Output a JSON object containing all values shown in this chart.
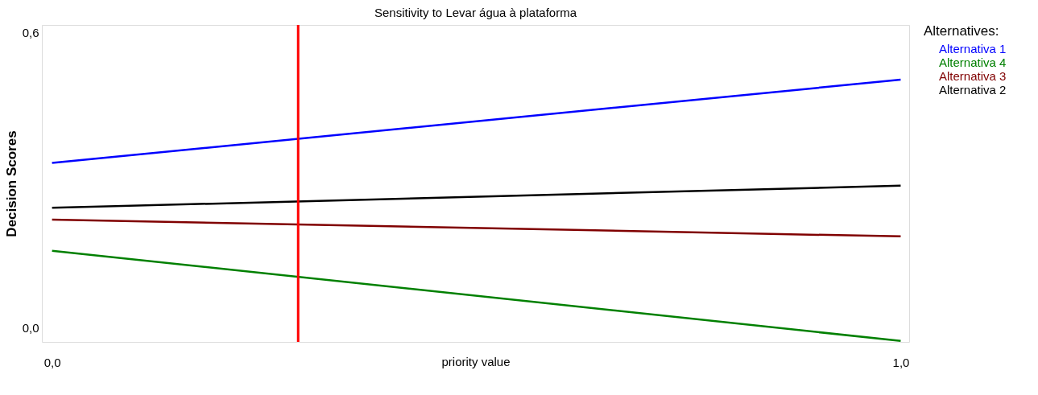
{
  "chart_data": {
    "type": "line",
    "title": "Sensitivity to Levar água à plataforma",
    "xlabel": "priority value",
    "ylabel": "Decision Scores",
    "legend_title": "Alternatives:",
    "legend": "top right",
    "grid": false,
    "marker": "none",
    "line_style": "solid",
    "x": [
      0,
      1
    ],
    "series": [
      {
        "name": "Alternativa 1",
        "color": "#0000ff",
        "values": [
          0.335,
          0.504
        ]
      },
      {
        "name": "Alternativa 4",
        "color": "#008000",
        "values": [
          0.157,
          -0.026
        ]
      },
      {
        "name": "Alternativa 3",
        "color": "#800000",
        "values": [
          0.22,
          0.186
        ]
      },
      {
        "name": "Alternativa 2",
        "color": "#000000",
        "values": [
          0.244,
          0.289
        ]
      }
    ],
    "xlim": [
      -0.012,
      1.01
    ],
    "xticks": [
      {
        "value": 0,
        "label": "0,0"
      },
      {
        "value": 1,
        "label": "1,0"
      }
    ],
    "ylim": [
      -0.028,
      0.615
    ],
    "yticks": [
      {
        "value": 0,
        "label": "0,0"
      },
      {
        "value": 0.6,
        "label": "0,6"
      }
    ],
    "ref_lines": [
      {
        "axis": "x",
        "value": 0.29,
        "label": null,
        "color": "#ff0000",
        "line_style": "solid"
      }
    ]
  }
}
